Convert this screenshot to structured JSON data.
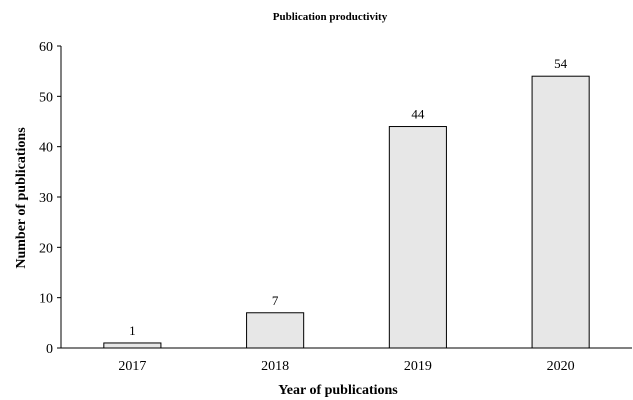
{
  "chart_data": {
    "type": "bar",
    "title": "Publication productivity",
    "xlabel": "Year of publications",
    "ylabel": "Number of publications",
    "categories": [
      "2017",
      "2018",
      "2019",
      "2020"
    ],
    "values": [
      1,
      7,
      44,
      54
    ],
    "ylim": [
      0,
      60
    ],
    "yticks": [
      0,
      10,
      20,
      30,
      40,
      50,
      60
    ],
    "grid": false,
    "legend": "none",
    "bar_color": "#e7e7e7",
    "bar_edge_color": "#000000"
  }
}
